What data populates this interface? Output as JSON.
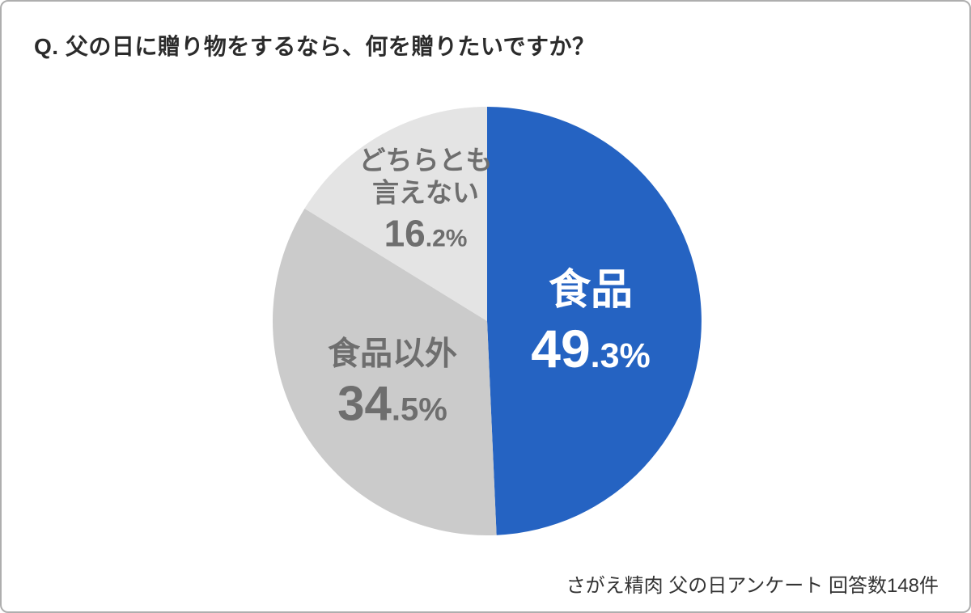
{
  "header": {
    "question": "Q. 父の日に贈り物をするなら、何を贈りたいですか？"
  },
  "footer": {
    "source": "さがえ精肉  父の日アンケート  回答数148件"
  },
  "chart_data": {
    "type": "pie",
    "title": "Q. 父の日に贈り物をするなら、何を贈りたいですか？",
    "start_angle_deg": 0,
    "direction": "clockwise",
    "unit": "%",
    "total": 100,
    "slices": [
      {
        "label": "食品",
        "label_lines": [
          "食品"
        ],
        "value": 49.3,
        "color": "#2563c2",
        "text_color": "#ffffff"
      },
      {
        "label": "食品以外",
        "label_lines": [
          "食品以外"
        ],
        "value": 34.5,
        "color": "#cbcbcb",
        "text_color": "#6e6e6e"
      },
      {
        "label": "どちらとも言えない",
        "label_lines": [
          "どちらとも",
          "言えない"
        ],
        "value": 16.2,
        "color": "#e4e4e4",
        "text_color": "#6e6e6e"
      }
    ],
    "source_note": "さがえ精肉  父の日アンケート  回答数148件"
  }
}
